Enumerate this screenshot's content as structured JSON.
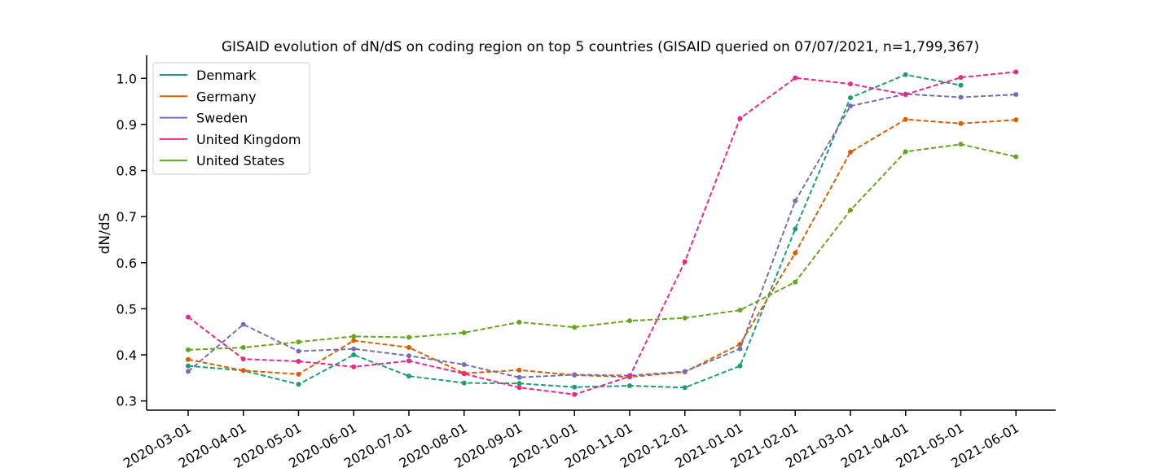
{
  "chart_data": {
    "type": "line",
    "title": "GISAID evolution of dN/dS on coding region on top 5 countries (GISAID queried on 07/07/2021, n=1,799,367)",
    "xlabel": "",
    "ylabel": "dN/dS",
    "ylim": [
      0.28,
      1.05
    ],
    "yticks": [
      0.3,
      0.4,
      0.5,
      0.6,
      0.7,
      0.8,
      0.9,
      1.0
    ],
    "ytick_labels": [
      "0.3",
      "0.4",
      "0.5",
      "0.6",
      "0.7",
      "0.8",
      "0.9",
      "1.0"
    ],
    "categories": [
      "2020-03-01",
      "2020-04-01",
      "2020-05-01",
      "2020-06-01",
      "2020-07-01",
      "2020-08-01",
      "2020-09-01",
      "2020-10-01",
      "2020-11-01",
      "2020-12-01",
      "2021-01-01",
      "2021-02-01",
      "2021-03-01",
      "2021-04-01",
      "2021-05-01",
      "2021-06-01"
    ],
    "grid": false,
    "legend_position": "top-left",
    "line_style": "dashed",
    "series": [
      {
        "name": "Denmark",
        "color": "#1b9e77",
        "values": [
          0.376,
          0.366,
          0.336,
          0.4,
          0.354,
          0.339,
          0.338,
          0.33,
          0.333,
          0.329,
          0.376,
          0.673,
          0.958,
          1.008,
          0.985,
          null
        ]
      },
      {
        "name": "Germany",
        "color": "#d95f02",
        "values": [
          0.39,
          0.366,
          0.358,
          0.431,
          0.416,
          0.36,
          0.367,
          0.356,
          0.352,
          0.363,
          0.423,
          0.621,
          0.84,
          0.911,
          0.902,
          0.91
        ]
      },
      {
        "name": "Sweden",
        "color": "#7570b3",
        "values": [
          0.364,
          0.466,
          0.408,
          0.413,
          0.398,
          0.379,
          0.351,
          0.357,
          0.355,
          0.364,
          0.413,
          0.734,
          0.94,
          0.966,
          0.959,
          0.965
        ]
      },
      {
        "name": "United Kingdom",
        "color": "#e7298a",
        "values": [
          0.482,
          0.391,
          0.386,
          0.374,
          0.387,
          0.359,
          0.329,
          0.314,
          0.353,
          0.602,
          0.913,
          1.001,
          0.988,
          0.965,
          1.002,
          1.014
        ]
      },
      {
        "name": "United States",
        "color": "#66a61e",
        "values": [
          0.411,
          0.416,
          0.428,
          0.44,
          0.438,
          0.448,
          0.471,
          0.46,
          0.474,
          0.48,
          0.497,
          0.558,
          0.714,
          0.841,
          0.857,
          0.83
        ]
      }
    ]
  }
}
